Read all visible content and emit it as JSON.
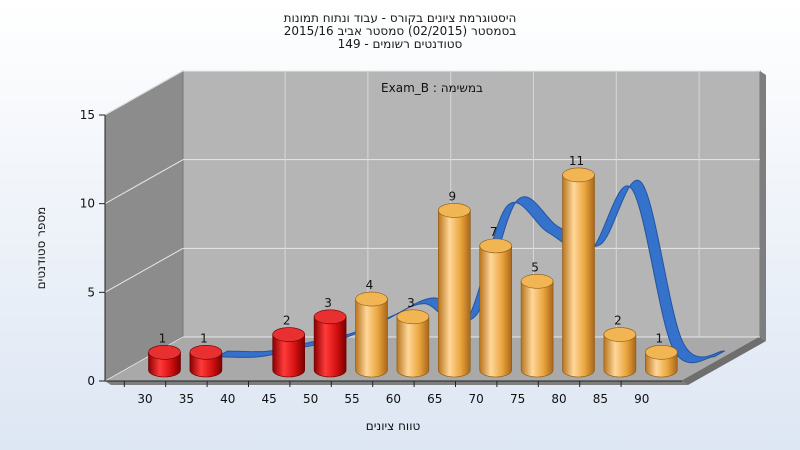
{
  "chart_data": {
    "type": "bar",
    "title_lines": [
      "היסטוגרמת ציונים בקורס - עבוד ונתוח תמונות",
      "בסמסטר  (02/2015)  סמסטר אביב 2015/16",
      "סטודנטים רשומים - 149"
    ],
    "annotation": "Exam_B : במשימה",
    "xlabel": "טווח ציונים",
    "ylabel": "מספר סטודנטים",
    "x_ticks": [
      "30",
      "35",
      "40",
      "45",
      "50",
      "55",
      "60",
      "65",
      "70",
      "75",
      "80",
      "85",
      "90"
    ],
    "y_ticks": [
      "0",
      "5",
      "10",
      "15"
    ],
    "ylim": [
      0,
      15
    ],
    "bars": [
      {
        "x": 30,
        "value": 1,
        "color": "red"
      },
      {
        "x": 35,
        "value": 1,
        "color": "red"
      },
      {
        "x": 45,
        "value": 2,
        "color": "red"
      },
      {
        "x": 50,
        "value": 3,
        "color": "red"
      },
      {
        "x": 55,
        "value": 4,
        "color": "orange"
      },
      {
        "x": 60,
        "value": 3,
        "color": "orange"
      },
      {
        "x": 65,
        "value": 9,
        "color": "orange"
      },
      {
        "x": 70,
        "value": 7,
        "color": "orange"
      },
      {
        "x": 75,
        "value": 5,
        "color": "orange"
      },
      {
        "x": 80,
        "value": 11,
        "color": "orange"
      },
      {
        "x": 85,
        "value": 2,
        "color": "orange"
      },
      {
        "x": 90,
        "value": 1,
        "color": "orange"
      }
    ],
    "curve_x": [
      35,
      40,
      45,
      50,
      55,
      60,
      65,
      70,
      75,
      80,
      85,
      90,
      95
    ],
    "curve_y": [
      0,
      0,
      0.5,
      1,
      2,
      3,
      2,
      8.5,
      7,
      6,
      9.5,
      0.5,
      0
    ],
    "colors": {
      "fail_bar": "#d81010",
      "pass_bar": "#eaa53e",
      "curve": "#2f6fce",
      "wall": "#b4b4b4",
      "side_wall": "#8a8a8a",
      "floor": "#a8a8a8"
    },
    "grid": true,
    "legend": "none"
  }
}
